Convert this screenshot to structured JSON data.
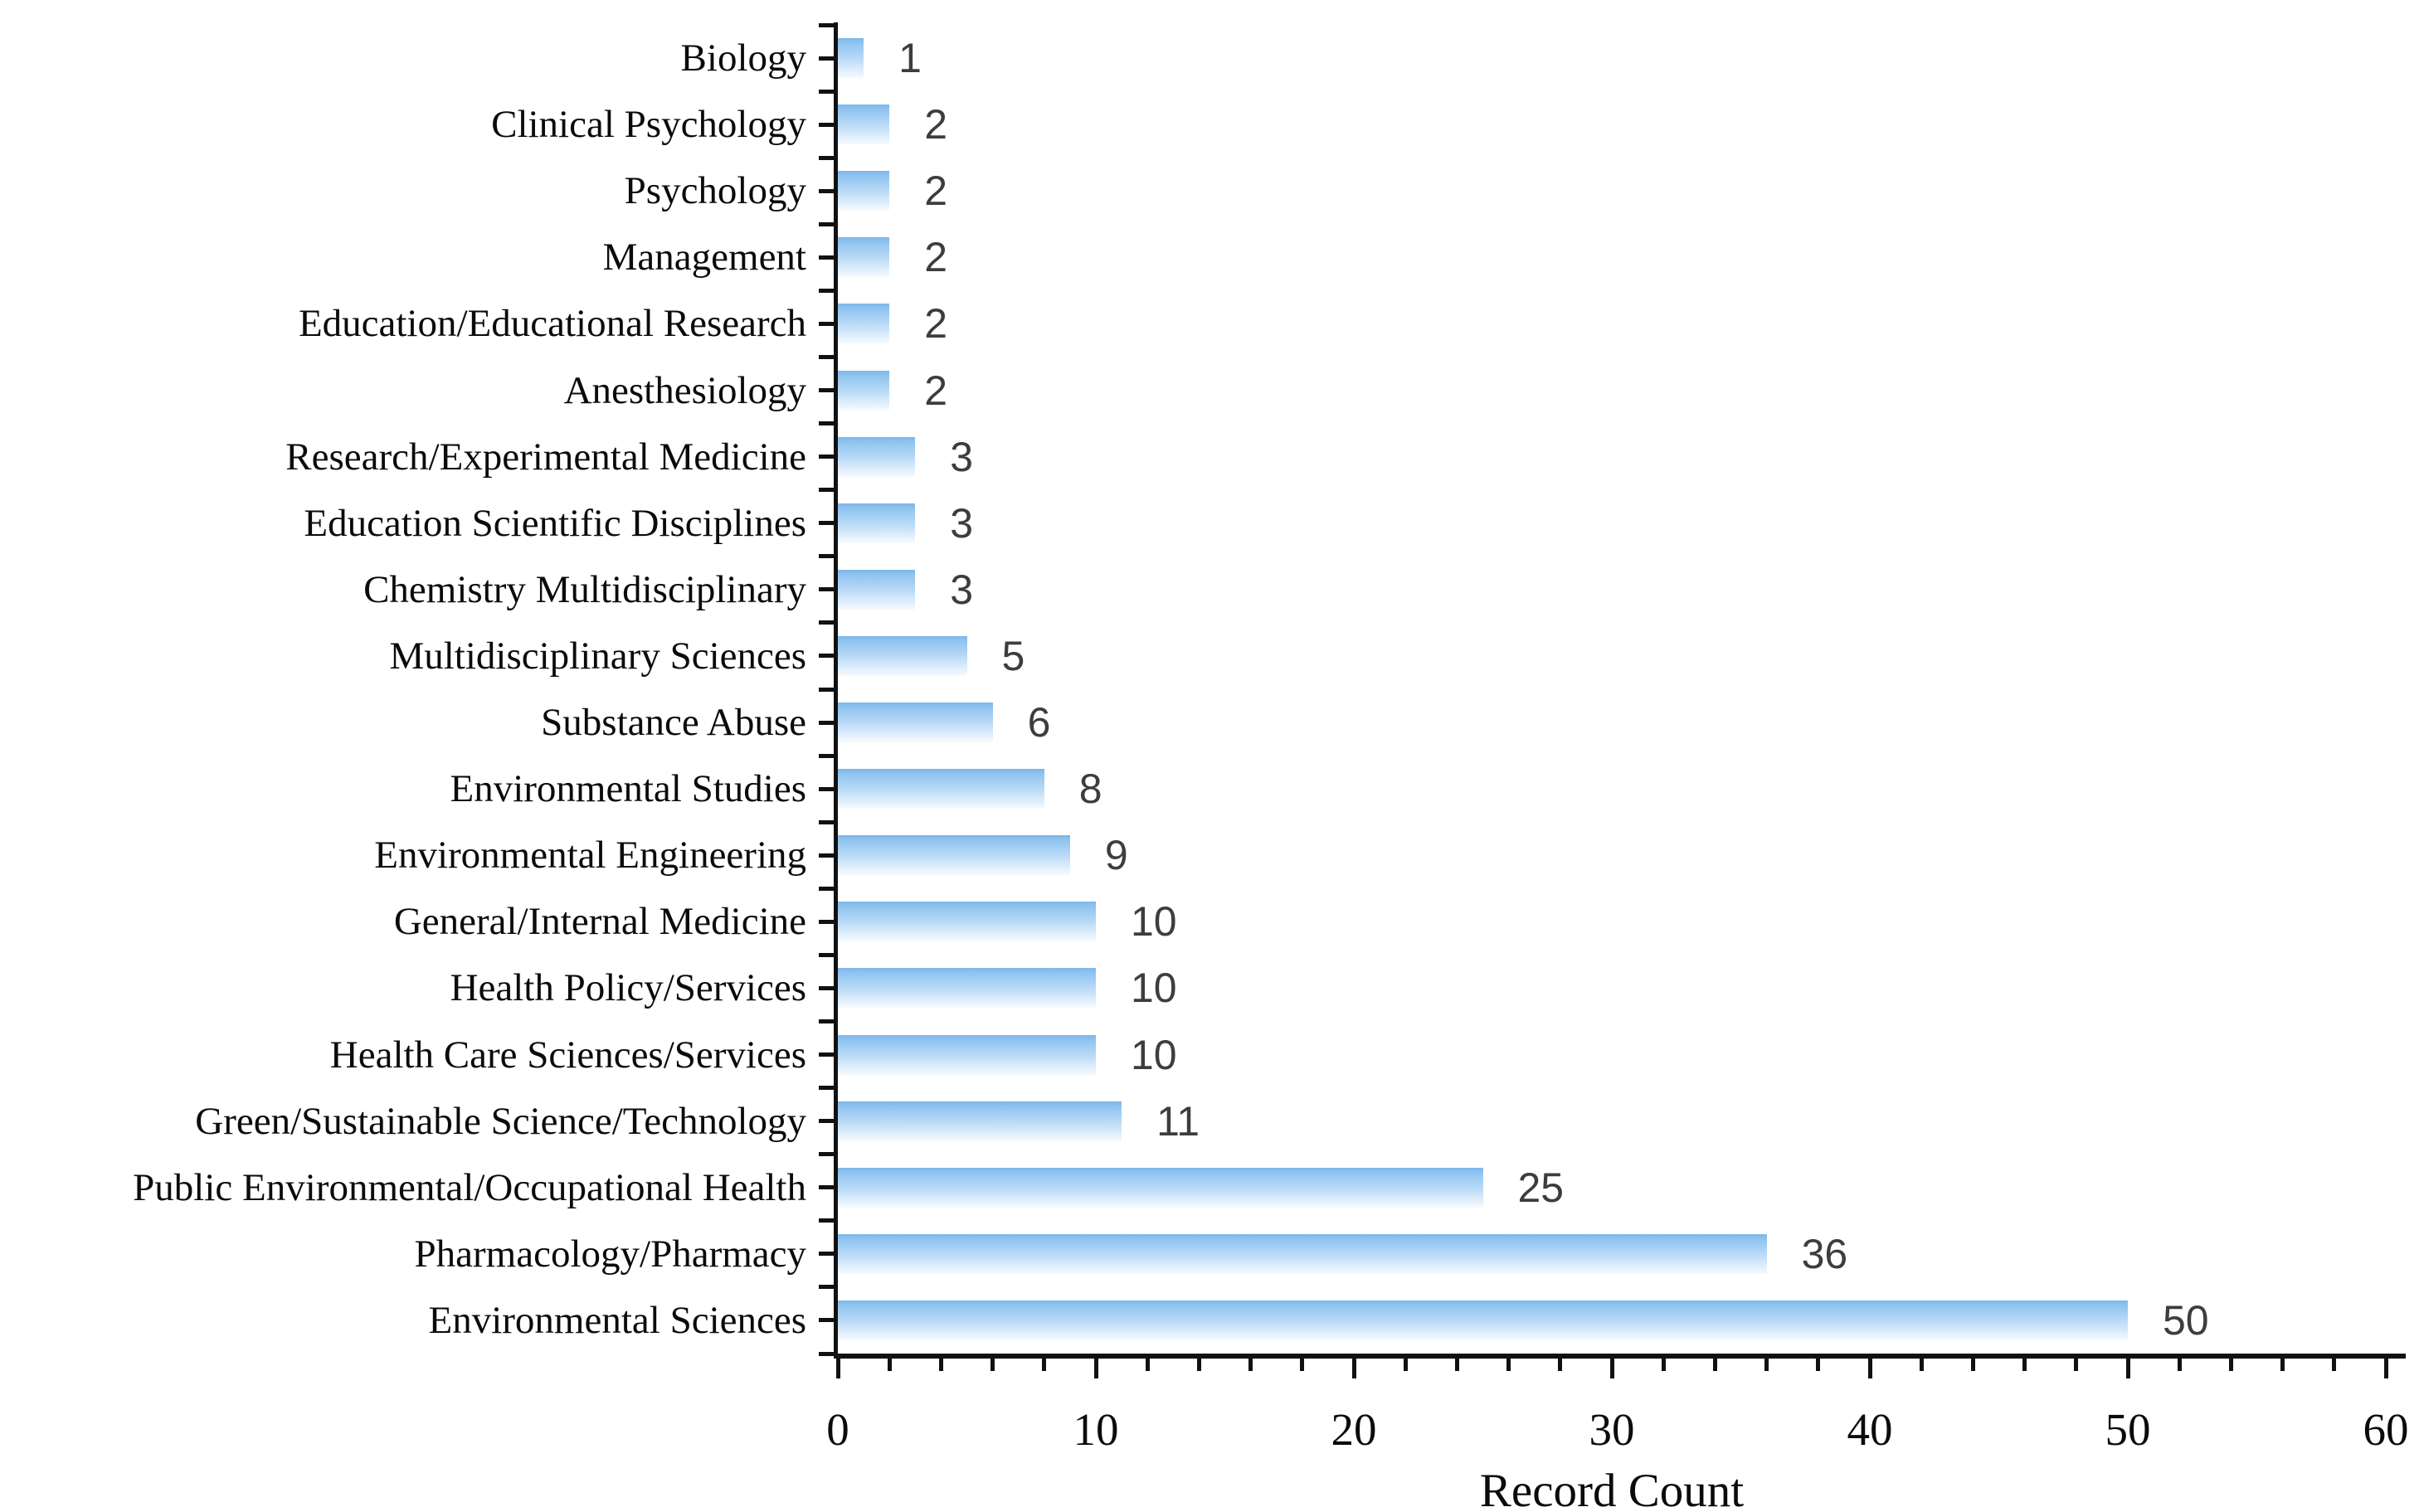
{
  "chart_data": {
    "type": "bar",
    "orientation": "horizontal",
    "title": "",
    "xlabel": "Record Count",
    "ylabel": "",
    "categories": [
      "Biology",
      "Clinical Psychology",
      "Psychology",
      "Management",
      "Education/Educational Research",
      "Anesthesiology",
      "Research/Experimental Medicine",
      "Education Scientific Disciplines",
      "Chemistry Multidisciplinary",
      "Multidisciplinary Sciences",
      "Substance Abuse",
      "Environmental Studies",
      "Environmental Engineering",
      "General/Internal Medicine",
      "Health Policy/Services",
      "Health Care Sciences/Services",
      "Green/Sustainable Science/Technology",
      "Public Environmental/Occupational Health",
      "Pharmacology/Pharmacy",
      "Environmental Sciences"
    ],
    "values": [
      1,
      2,
      2,
      2,
      2,
      2,
      3,
      3,
      3,
      5,
      6,
      8,
      9,
      10,
      10,
      10,
      11,
      25,
      36,
      50
    ],
    "xlim": [
      0,
      60
    ],
    "x_major_ticks": [
      0,
      10,
      20,
      30,
      40,
      50,
      60
    ],
    "x_minor_tick_step": 2,
    "grid": false,
    "legend": "none",
    "bar_gradient_top": "#7cb7ea",
    "bar_gradient_bottom": "#f6fbff",
    "value_label_color": "#3d3d3d",
    "axis_color": "#111111",
    "text_color": "#0b0b0b"
  }
}
